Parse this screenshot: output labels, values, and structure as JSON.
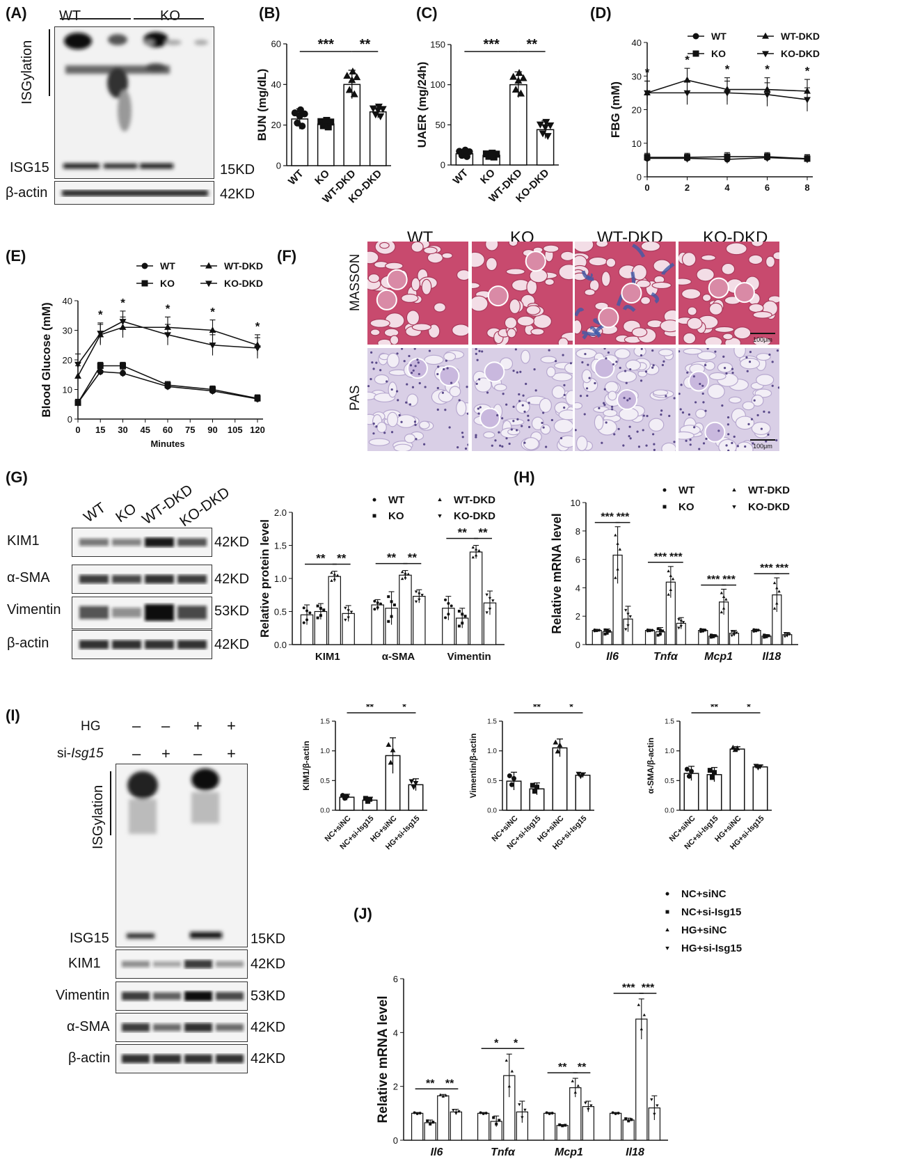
{
  "panels": {
    "A": {
      "label": "(A)",
      "groups": [
        "WT",
        "KO"
      ],
      "isg_label": "ISGylation",
      "rows": [
        {
          "name": "ISG15",
          "kd": "15KD"
        },
        {
          "name": "β-actin",
          "kd": "42KD"
        }
      ]
    },
    "B": {
      "label": "(B)"
    },
    "C": {
      "label": "(C)"
    },
    "D": {
      "label": "(D)"
    },
    "E": {
      "label": "(E)"
    },
    "F": {
      "label": "(F)",
      "cols": [
        "WT",
        "KO",
        "WT-DKD",
        "KO-DKD"
      ],
      "rows": [
        "MASSON",
        "PAS"
      ],
      "scale": "100μm",
      "colors": {
        "masson_red": "#c84a6e",
        "masson_blue": "#3f5aa8",
        "pas_bg": "#d9cfe6",
        "pas_nuclei": "#5a4a8a"
      }
    },
    "G": {
      "label": "(G)",
      "lanes": [
        "WT",
        "KO",
        "WT-DKD",
        "KO-DKD"
      ],
      "rows": [
        {
          "name": "KIM1",
          "kd": "42KD"
        },
        {
          "name": "α-SMA",
          "kd": "42KD"
        },
        {
          "name": "Vimentin",
          "kd": "53KD"
        },
        {
          "name": "β-actin",
          "kd": "42KD"
        }
      ]
    },
    "H": {
      "label": "(H)"
    },
    "I": {
      "label": "(I)",
      "hg_label": "HG",
      "si_prefix": "si-",
      "si_gene": "Isg15",
      "hg_signs": [
        "–",
        "–",
        "+",
        "+"
      ],
      "si_signs": [
        "–",
        "+",
        "–",
        "+"
      ],
      "isg_label": "ISGylation",
      "rows": [
        {
          "name": "ISG15",
          "kd": "15KD"
        },
        {
          "name": "KIM1",
          "kd": "42KD"
        },
        {
          "name": "Vimentin",
          "kd": "53KD"
        },
        {
          "name": "α-SMA",
          "kd": "42KD"
        },
        {
          "name": "β-actin",
          "kd": "42KD"
        }
      ]
    },
    "J": {
      "label": "(J)"
    }
  },
  "chart_data": [
    {
      "id": "B",
      "type": "bar",
      "categories": [
        "WT",
        "KO",
        "WT-DKD",
        "KO-DKD"
      ],
      "values": [
        23,
        20.5,
        40,
        26.5
      ],
      "errors": [
        5,
        2,
        7,
        3
      ],
      "ylabel": "BUN (mg/dL)",
      "ylim": [
        0,
        60
      ],
      "yticks": [
        0,
        20,
        40,
        60
      ],
      "sig": [
        {
          "from": 0,
          "to": 2,
          "text": "***"
        },
        {
          "from": 2,
          "to": 3,
          "text": "**"
        }
      ]
    },
    {
      "id": "C",
      "type": "bar",
      "categories": [
        "WT",
        "KO",
        "WT-DKD",
        "KO-DKD"
      ],
      "values": [
        14,
        12,
        100,
        44
      ],
      "errors": [
        5,
        3,
        16,
        11
      ],
      "ylabel": "UAER (mg/24h)",
      "ylim": [
        0,
        150
      ],
      "yticks": [
        0,
        50,
        100,
        150
      ],
      "sig": [
        {
          "from": 0,
          "to": 2,
          "text": "***"
        },
        {
          "from": 2,
          "to": 3,
          "text": "**"
        }
      ]
    },
    {
      "id": "D",
      "type": "line",
      "x": [
        0,
        2,
        4,
        6,
        8
      ],
      "xticks": [
        0,
        2,
        4,
        6,
        8
      ],
      "ylabel": "FBG (mM)",
      "ylim": [
        0,
        40
      ],
      "yticks": [
        0,
        10,
        20,
        30,
        40
      ],
      "series": [
        {
          "name": "WT",
          "marker": "circle",
          "values": [
            5.5,
            5.5,
            5.2,
            5.7,
            5.3
          ]
        },
        {
          "name": "KO",
          "marker": "square",
          "values": [
            5.8,
            5.8,
            6.0,
            6.0,
            5.4
          ]
        },
        {
          "name": "WT-DKD",
          "marker": "triangle",
          "values": [
            25,
            28.8,
            26,
            26,
            25.5
          ]
        },
        {
          "name": "KO-DKD",
          "marker": "tri-down",
          "values": [
            25,
            25,
            25,
            24.5,
            23
          ]
        }
      ],
      "stars": [
        "*",
        "*",
        "*",
        "*",
        "*"
      ]
    },
    {
      "id": "E",
      "type": "line",
      "x": [
        0,
        15,
        30,
        60,
        90,
        120
      ],
      "xticks": [
        0,
        15,
        30,
        45,
        60,
        75,
        90,
        105,
        120
      ],
      "xlabel": "Minutes",
      "ylabel": "Blood Glucose (mM)",
      "ylim": [
        0,
        40
      ],
      "yticks": [
        0,
        10,
        20,
        30,
        40
      ],
      "series": [
        {
          "name": "WT",
          "marker": "circle",
          "values": [
            5.5,
            16,
            15.5,
            11,
            9.5,
            6.8
          ]
        },
        {
          "name": "KO",
          "marker": "square",
          "values": [
            5.5,
            18,
            18,
            11.5,
            10,
            7
          ]
        },
        {
          "name": "WT-DKD",
          "marker": "triangle",
          "values": [
            14.5,
            28.5,
            31,
            31,
            30,
            25
          ]
        },
        {
          "name": "KO-DKD",
          "marker": "tri-down",
          "values": [
            18.5,
            29,
            33,
            28.5,
            25,
            24
          ]
        }
      ],
      "stars": [
        "",
        "*",
        "*",
        "*",
        "*",
        "*"
      ]
    },
    {
      "id": "G",
      "type": "bar",
      "categories": [
        "KIM1",
        "α-SMA",
        "Vimentin"
      ],
      "ylabel": "Relative protein level",
      "ylim": [
        0,
        2.0
      ],
      "yticks": [
        "0.0",
        "0.5",
        "1.0",
        "1.5",
        "2.0"
      ],
      "series": [
        {
          "name": "WT",
          "values": [
            0.45,
            0.6,
            0.55
          ],
          "errors": [
            0.15,
            0.08,
            0.18
          ]
        },
        {
          "name": "KO",
          "values": [
            0.5,
            0.55,
            0.4
          ],
          "errors": [
            0.12,
            0.25,
            0.15
          ]
        },
        {
          "name": "WT-DKD",
          "values": [
            1.03,
            1.05,
            1.4
          ],
          "errors": [
            0.08,
            0.07,
            0.1
          ]
        },
        {
          "name": "KO-DKD",
          "values": [
            0.47,
            0.73,
            0.63
          ],
          "errors": [
            0.12,
            0.1,
            0.18
          ]
        }
      ],
      "sig": [
        {
          "pair": [
            0,
            2
          ],
          "text": "**"
        },
        {
          "pair": [
            2,
            3
          ],
          "text": "**"
        }
      ]
    },
    {
      "id": "H",
      "type": "bar",
      "categories": [
        "Il6",
        "Tnfα",
        "Mcp1",
        "Il18"
      ],
      "italic_categories": true,
      "ylabel": "Relative mRNA level",
      "ylim": [
        0,
        10
      ],
      "yticks": [
        0,
        2,
        4,
        6,
        8,
        10
      ],
      "series": [
        {
          "name": "WT",
          "values": [
            1,
            1,
            1,
            1
          ],
          "errors": [
            0.05,
            0.05,
            0.1,
            0.08
          ]
        },
        {
          "name": "KO",
          "values": [
            0.9,
            0.9,
            0.6,
            0.6
          ],
          "errors": [
            0.2,
            0.3,
            0.1,
            0.1
          ]
        },
        {
          "name": "WT-DKD",
          "values": [
            6.3,
            4.4,
            3.0,
            3.5
          ],
          "errors": [
            2.0,
            1.1,
            0.9,
            1.2
          ]
        },
        {
          "name": "KO-DKD",
          "values": [
            1.8,
            1.5,
            0.8,
            0.7
          ],
          "errors": [
            0.9,
            0.4,
            0.2,
            0.15
          ]
        }
      ],
      "sig": [
        {
          "pair": [
            0,
            2
          ],
          "text": "***"
        },
        {
          "pair": [
            2,
            3
          ],
          "text": "***"
        }
      ]
    },
    {
      "id": "I1",
      "type": "bar",
      "categories": [
        "NC+siNC",
        "NC+si-Isg15",
        "HG+siNC",
        "HG+si-Isg15"
      ],
      "values": [
        0.22,
        0.17,
        0.92,
        0.43
      ],
      "errors": [
        0.05,
        0.05,
        0.3,
        0.1
      ],
      "ylabel": "KIM1/β-actin",
      "ylim": [
        0,
        1.5
      ],
      "yticks": [
        "0.0",
        "0.5",
        "1.0",
        "1.5"
      ],
      "sig": [
        {
          "from": 0,
          "to": 2,
          "text": "**"
        },
        {
          "from": 2,
          "to": 3,
          "text": "*"
        }
      ]
    },
    {
      "id": "I2",
      "type": "bar",
      "categories": [
        "NC+siNC",
        "NC+si-Isg15",
        "HG+siNC",
        "HG+si-Isg15"
      ],
      "values": [
        0.49,
        0.36,
        1.05,
        0.59
      ],
      "errors": [
        0.15,
        0.1,
        0.15,
        0.04
      ],
      "ylabel": "Vimentin/β-actin",
      "ylim": [
        0,
        1.5
      ],
      "yticks": [
        "0.0",
        "0.5",
        "1.0",
        "1.5"
      ],
      "sig": [
        {
          "from": 0,
          "to": 2,
          "text": "**"
        },
        {
          "from": 2,
          "to": 3,
          "text": "*"
        }
      ]
    },
    {
      "id": "I3",
      "type": "bar",
      "categories": [
        "NC+siNC",
        "NC+si-Isg15",
        "HG+siNC",
        "HG+si-Isg15"
      ],
      "values": [
        0.62,
        0.6,
        1.03,
        0.73
      ],
      "errors": [
        0.12,
        0.12,
        0.04,
        0.03
      ],
      "ylabel": "α-SMA/β-actin",
      "ylim": [
        0,
        1.5
      ],
      "yticks": [
        "0.0",
        "0.5",
        "1.0",
        "1.5"
      ],
      "sig": [
        {
          "from": 0,
          "to": 2,
          "text": "**"
        },
        {
          "from": 2,
          "to": 3,
          "text": "*"
        }
      ]
    },
    {
      "id": "J",
      "type": "bar",
      "categories": [
        "Il6",
        "Tnfα",
        "Mcp1",
        "Il18"
      ],
      "italic_categories": true,
      "ylabel": "Relative mRNA level",
      "ylim": [
        0,
        6
      ],
      "yticks": [
        0,
        2,
        4,
        6
      ],
      "series": [
        {
          "name": "NC+siNC",
          "values": [
            1,
            1,
            1,
            1
          ],
          "errors": [
            0.03,
            0.03,
            0.03,
            0.03
          ]
        },
        {
          "name": "NC+si-Isg15",
          "values": [
            0.65,
            0.7,
            0.55,
            0.75
          ],
          "errors": [
            0.1,
            0.2,
            0.03,
            0.07
          ]
        },
        {
          "name": "HG+siNC",
          "values": [
            1.65,
            2.4,
            1.95,
            4.5
          ],
          "errors": [
            0.05,
            0.8,
            0.35,
            0.75
          ]
        },
        {
          "name": "HG+si-Isg15",
          "values": [
            1.05,
            1.05,
            1.25,
            1.2
          ],
          "errors": [
            0.1,
            0.4,
            0.2,
            0.45
          ]
        }
      ],
      "sig": [
        [
          {
            "pair": [
              0,
              2
            ],
            "text": "**"
          },
          {
            "pair": [
              2,
              3
            ],
            "text": "**"
          }
        ],
        [
          {
            "pair": [
              0,
              2
            ],
            "text": "*"
          },
          {
            "pair": [
              2,
              3
            ],
            "text": "*"
          }
        ],
        [
          {
            "pair": [
              0,
              2
            ],
            "text": "**"
          },
          {
            "pair": [
              2,
              3
            ],
            "text": "**"
          }
        ],
        [
          {
            "pair": [
              0,
              2
            ],
            "text": "***"
          },
          {
            "pair": [
              2,
              3
            ],
            "text": "***"
          }
        ]
      ]
    }
  ]
}
